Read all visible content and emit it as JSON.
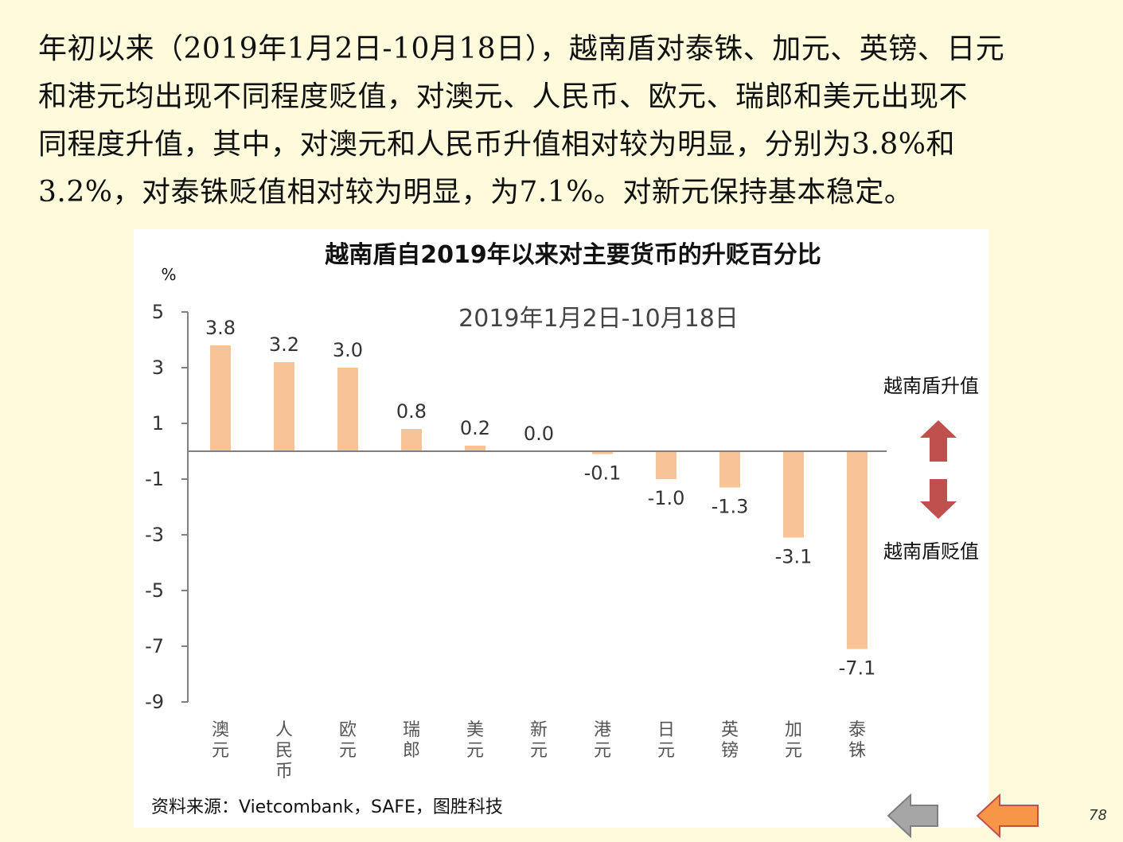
{
  "paragraph": {
    "lines": [
      "年初以来（2019年1月2日-10月18日），越南盾对泰铢、加元、英镑、日元",
      "和港元均出现不同程度贬值，对澳元、人民币、欧元、瑞郎和美元出现不",
      "同程度升值，其中，对澳元和人民币升值相对较为明显，分别为3.8%和",
      "3.2%，对泰铢贬值相对较为明显，为7.1%。对新元保持基本稳定。"
    ]
  },
  "chart_data": {
    "type": "bar",
    "title": "越南盾自2019年以来对主要货币的升贬百分比",
    "subtitle": "2019年1月2日-10月18日",
    "ylabel": "%",
    "categories": [
      "澳元",
      "人民币",
      "欧元",
      "瑞郎",
      "美元",
      "新元",
      "港元",
      "日元",
      "英镑",
      "加元",
      "泰铢"
    ],
    "values": [
      3.8,
      3.2,
      3.0,
      0.8,
      0.2,
      0.0,
      -0.1,
      -1.0,
      -1.3,
      -3.1,
      -7.1
    ],
    "data_labels": [
      "3.8",
      "3.2",
      "3.0",
      "0.8",
      "0.2",
      "0.0",
      "-0.1",
      "-1.0",
      "-1.3",
      "-3.1",
      "-7.1"
    ],
    "yticks": [
      5,
      3,
      1,
      -1,
      -3,
      -5,
      -7,
      -9
    ],
    "ylim": [
      -9,
      5
    ],
    "bar_color": "#f8c395",
    "grid": false,
    "legend": "none",
    "annotations": {
      "up_label": "越南盾升值",
      "down_label": "越南盾贬值",
      "arrow_color": "#c0504d"
    }
  },
  "source": "资料来源：Vietcombank，SAFE，图胜科技",
  "nav": {
    "back_icon": "arrow-left-icon-gray",
    "forward_icon": "arrow-left-icon-orange",
    "back_color": "#a6a6a6",
    "forward_color": "#f79646"
  },
  "page_number": "78"
}
